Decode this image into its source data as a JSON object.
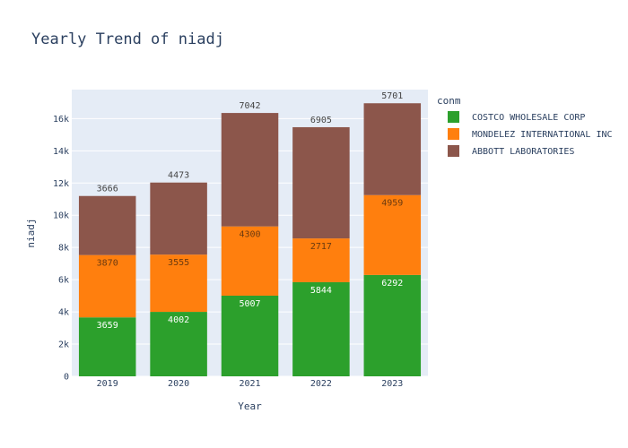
{
  "chart_data": {
    "type": "bar",
    "barmode": "stack",
    "title": "Yearly Trend of niadj",
    "xlabel": "Year",
    "ylabel": "niadj",
    "categories": [
      "2019",
      "2020",
      "2021",
      "2022",
      "2023"
    ],
    "ylim": [
      0,
      17800
    ],
    "yticks": [
      0,
      2000,
      4000,
      6000,
      8000,
      10000,
      12000,
      14000,
      16000
    ],
    "ytick_labels": [
      "0",
      "2k",
      "4k",
      "6k",
      "8k",
      "10k",
      "12k",
      "14k",
      "16k"
    ],
    "legend_title": "conm",
    "legend_position": "right",
    "series": [
      {
        "name": "COSTCO WHOLESALE CORP",
        "color": "#2ca02c",
        "values": [
          3659,
          4002,
          5007,
          5844,
          6292
        ],
        "label_position": "inside"
      },
      {
        "name": "MONDELEZ INTERNATIONAL INC",
        "color": "#ff7f0e",
        "values": [
          3870,
          3555,
          4300,
          2717,
          4959
        ],
        "label_position": "inside"
      },
      {
        "name": "ABBOTT LABORATORIES",
        "color": "#8c564b",
        "values": [
          3666,
          4473,
          7042,
          6905,
          5701
        ],
        "label_position": "outside"
      }
    ],
    "plot_bg": "#e5ecf6",
    "grid": true
  }
}
